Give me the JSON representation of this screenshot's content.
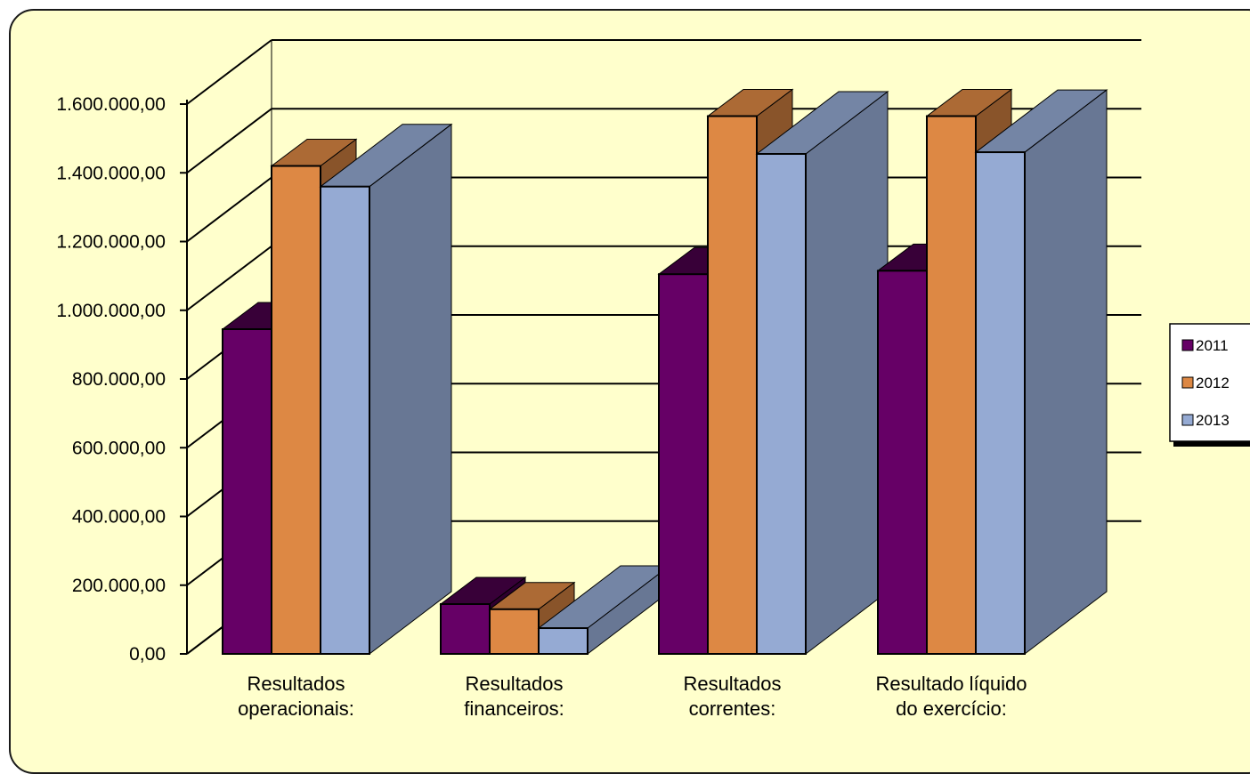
{
  "chart_data": {
    "type": "bar",
    "categories": [
      [
        "Resultados",
        "operacionais:"
      ],
      [
        "Resultados",
        "financeiros:"
      ],
      [
        "Resultados",
        "correntes:"
      ],
      [
        "Resultado líquido",
        "do exercício:"
      ]
    ],
    "series": [
      {
        "name": "2011",
        "values": [
          945000,
          145000,
          1105000,
          1115000
        ],
        "color": "#660066"
      },
      {
        "name": "2012",
        "values": [
          1420000,
          130000,
          1565000,
          1565000
        ],
        "color": "#dd8844"
      },
      {
        "name": "2013",
        "values": [
          1360000,
          75000,
          1455000,
          1460000
        ],
        "color": "#95aad3"
      }
    ],
    "y_ticks": [
      "0,00",
      "200.000,00",
      "400.000,00",
      "600.000,00",
      "800.000,00",
      "1.000.000,00",
      "1.200.000,00",
      "1.400.000,00",
      "1.600.000,00"
    ],
    "ylim": [
      0,
      1600000
    ],
    "grid": true,
    "legend_position": "right",
    "background_color": "#ffffcc"
  }
}
